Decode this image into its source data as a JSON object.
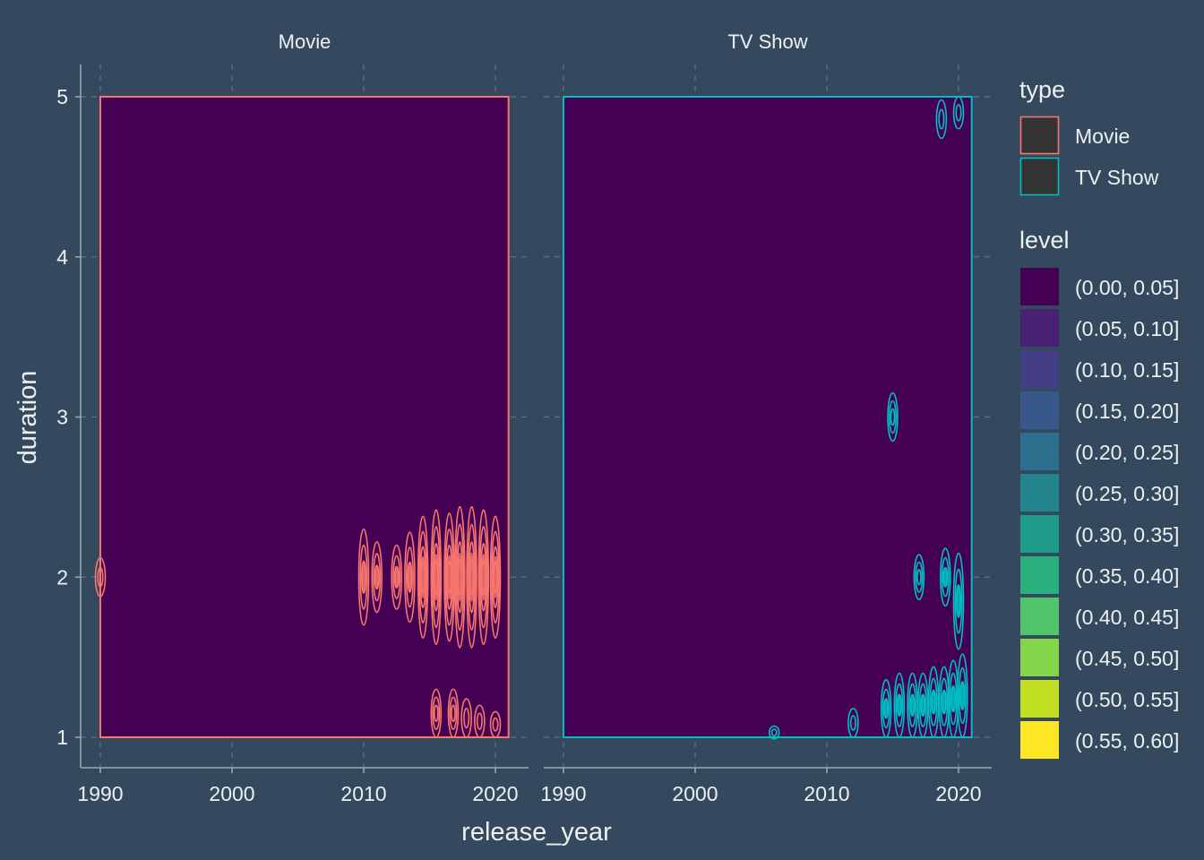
{
  "chart_data": {
    "type": "contour",
    "xlabel": "release_year",
    "ylabel": "duration",
    "xlim": [
      1990,
      2021
    ],
    "ylim": [
      1,
      5
    ],
    "x_ticks": [
      "1990",
      "2000",
      "2010",
      "2020"
    ],
    "y_ticks": [
      "1",
      "2",
      "3",
      "4",
      "5"
    ],
    "panels": [
      {
        "name": "Movie",
        "color": "#f8766d",
        "bands": [
          {
            "x": 1990,
            "y": 2.0,
            "h": 0.12
          },
          {
            "x": 2010,
            "y": 2.0,
            "h": 0.3
          },
          {
            "x": 2011,
            "y": 2.0,
            "h": 0.22
          },
          {
            "x": 2012.5,
            "y": 2.0,
            "h": 0.2
          },
          {
            "x": 2013.5,
            "y": 2.0,
            "h": 0.28
          },
          {
            "x": 2014.5,
            "y": 2.0,
            "h": 0.38
          },
          {
            "x": 2015.5,
            "y": 2.0,
            "h": 0.42
          },
          {
            "x": 2016.5,
            "y": 2.0,
            "h": 0.4
          },
          {
            "x": 2017.3,
            "y": 2.0,
            "h": 0.44
          },
          {
            "x": 2018.2,
            "y": 2.0,
            "h": 0.44
          },
          {
            "x": 2019.1,
            "y": 2.0,
            "h": 0.42
          },
          {
            "x": 2020.0,
            "y": 2.0,
            "h": 0.38
          },
          {
            "x": 2015.5,
            "y": 1.15,
            "h": 0.15
          },
          {
            "x": 2016.8,
            "y": 1.15,
            "h": 0.15
          },
          {
            "x": 2017.8,
            "y": 1.12,
            "h": 0.12
          },
          {
            "x": 2018.8,
            "y": 1.1,
            "h": 0.1
          },
          {
            "x": 2020.0,
            "y": 1.08,
            "h": 0.08
          }
        ]
      },
      {
        "name": "TV Show",
        "color": "#00bfc4",
        "bands": [
          {
            "x": 2018.7,
            "y": 4.86,
            "h": 0.12
          },
          {
            "x": 2020.0,
            "y": 4.9,
            "h": 0.1
          },
          {
            "x": 2015.0,
            "y": 3.0,
            "h": 0.15
          },
          {
            "x": 2017.0,
            "y": 2.0,
            "h": 0.14
          },
          {
            "x": 2019.0,
            "y": 2.0,
            "h": 0.18
          },
          {
            "x": 2020.0,
            "y": 1.85,
            "h": 0.3
          },
          {
            "x": 2006.0,
            "y": 1.03,
            "h": 0.04
          },
          {
            "x": 2012.0,
            "y": 1.09,
            "h": 0.09
          },
          {
            "x": 2014.5,
            "y": 1.18,
            "h": 0.18
          },
          {
            "x": 2015.5,
            "y": 1.2,
            "h": 0.2
          },
          {
            "x": 2016.5,
            "y": 1.2,
            "h": 0.2
          },
          {
            "x": 2017.3,
            "y": 1.2,
            "h": 0.2
          },
          {
            "x": 2018.1,
            "y": 1.22,
            "h": 0.22
          },
          {
            "x": 2018.9,
            "y": 1.22,
            "h": 0.22
          },
          {
            "x": 2019.6,
            "y": 1.24,
            "h": 0.24
          },
          {
            "x": 2020.3,
            "y": 1.26,
            "h": 0.26
          }
        ]
      }
    ],
    "legend": {
      "position": "right",
      "type_title": "type",
      "type_items": [
        {
          "label": "Movie",
          "color": "#f8766d"
        },
        {
          "label": "TV Show",
          "color": "#00bfc4"
        }
      ],
      "level_title": "level",
      "level_items": [
        {
          "label": "(0.00, 0.05]",
          "color": "#440154"
        },
        {
          "label": "(0.05, 0.10]",
          "color": "#482173"
        },
        {
          "label": "(0.10, 0.15]",
          "color": "#433e85"
        },
        {
          "label": "(0.15, 0.20]",
          "color": "#38588c"
        },
        {
          "label": "(0.20, 0.25]",
          "color": "#2d708e"
        },
        {
          "label": "(0.25, 0.30]",
          "color": "#25858e"
        },
        {
          "label": "(0.30, 0.35]",
          "color": "#1e9b8a"
        },
        {
          "label": "(0.35, 0.40]",
          "color": "#2ab07f"
        },
        {
          "label": "(0.40, 0.45]",
          "color": "#51c56a"
        },
        {
          "label": "(0.45, 0.50]",
          "color": "#85d54a"
        },
        {
          "label": "(0.50, 0.55]",
          "color": "#c2df23"
        },
        {
          "label": "(0.55, 0.60]",
          "color": "#fde725"
        }
      ]
    },
    "colors": {
      "background": "#34495e",
      "grid": "#5f7184",
      "text": "#ecf0f1",
      "fill": "#440154"
    }
  }
}
